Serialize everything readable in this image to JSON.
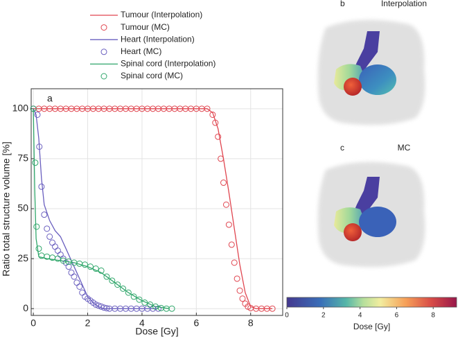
{
  "chart_data": {
    "type": "line",
    "panel_label": "a",
    "xlabel": "Dose [Gy]",
    "ylabel": "Ratio total structure volume [%]",
    "xlim": [
      -0.08,
      9.18
    ],
    "ylim": [
      -3.4,
      110
    ],
    "xticks": [
      0,
      2,
      4,
      6,
      8
    ],
    "yticks": [
      0,
      25,
      50,
      75,
      100
    ],
    "grid": true,
    "series": [
      {
        "name": "Tumour (Interpolation)",
        "mode": "line",
        "color": "#e0454f",
        "x": [
          0,
          6.4,
          6.6,
          6.8,
          7.0,
          7.2,
          7.4,
          7.6,
          7.8,
          8.0,
          8.2,
          8.8
        ],
        "values": [
          100,
          100,
          98,
          90,
          75,
          58,
          40,
          22,
          8,
          1,
          0,
          0
        ]
      },
      {
        "name": "Tumour (MC)",
        "mode": "markers",
        "color": "#e0454f",
        "x": [
          0,
          0.2,
          0.4,
          0.6,
          0.8,
          1.0,
          1.2,
          1.4,
          1.6,
          1.8,
          2.0,
          2.2,
          2.4,
          2.6,
          2.8,
          3.0,
          3.2,
          3.4,
          3.6,
          3.8,
          4.0,
          4.2,
          4.4,
          4.6,
          4.8,
          5.0,
          5.2,
          5.4,
          5.6,
          5.8,
          6.0,
          6.2,
          6.4,
          6.6,
          6.7,
          6.8,
          6.9,
          7.0,
          7.1,
          7.2,
          7.3,
          7.4,
          7.5,
          7.6,
          7.7,
          7.8,
          7.9,
          8.0,
          8.2,
          8.4,
          8.6,
          8.8
        ],
        "values": [
          100,
          100,
          100,
          100,
          100,
          100,
          100,
          100,
          100,
          100,
          100,
          100,
          100,
          100,
          100,
          100,
          100,
          100,
          100,
          100,
          100,
          100,
          100,
          100,
          100,
          100,
          100,
          100,
          100,
          100,
          100,
          100,
          100,
          97,
          93,
          86,
          75,
          63,
          52,
          42,
          32,
          23,
          15,
          9,
          5,
          2.5,
          1,
          0.3,
          0,
          0,
          0,
          0
        ]
      },
      {
        "name": "Heart (Interpolation)",
        "mode": "line",
        "color": "#6a5fbf",
        "x": [
          0,
          0.1,
          0.2,
          0.3,
          0.4,
          0.6,
          0.8,
          1.0,
          1.2,
          1.4,
          1.6,
          1.8,
          2.0,
          2.2,
          2.4,
          2.6,
          4.6
        ],
        "values": [
          100,
          97,
          85,
          65,
          52,
          44,
          39,
          36,
          30,
          24,
          18,
          12,
          6,
          3,
          1,
          0,
          0
        ]
      },
      {
        "name": "Heart (MC)",
        "mode": "markers",
        "color": "#6a5fbf",
        "x": [
          0,
          0.15,
          0.22,
          0.3,
          0.4,
          0.5,
          0.6,
          0.7,
          0.8,
          0.9,
          1.0,
          1.1,
          1.2,
          1.3,
          1.4,
          1.5,
          1.6,
          1.7,
          1.8,
          1.9,
          2.0,
          2.1,
          2.2,
          2.3,
          2.4,
          2.5,
          2.6,
          2.7,
          2.8,
          3.0,
          3.2,
          3.4,
          3.6,
          3.8,
          4.0,
          4.2,
          4.4,
          4.6
        ],
        "values": [
          100,
          97,
          81,
          61,
          47,
          40,
          36,
          33,
          31,
          29,
          27,
          25,
          23,
          21,
          18,
          16,
          13,
          11,
          8,
          6,
          5,
          4,
          3,
          2,
          1.5,
          1,
          0.5,
          0.2,
          0,
          0,
          0,
          0,
          0,
          0,
          0,
          0,
          0,
          0
        ]
      },
      {
        "name": "Spinal cord (Interpolation)",
        "mode": "line",
        "color": "#2fa66a",
        "x": [
          0,
          0.05,
          0.1,
          0.2,
          0.5,
          1.0,
          1.5,
          2.0,
          2.5,
          3.0,
          3.5,
          4.0,
          4.5,
          5.0
        ],
        "values": [
          100,
          60,
          35,
          26,
          25,
          24,
          23,
          21,
          18,
          13,
          8,
          4,
          1,
          0
        ]
      },
      {
        "name": "Spinal cord (MC)",
        "mode": "markers",
        "color": "#2fa66a",
        "x": [
          0,
          0.07,
          0.12,
          0.2,
          0.3,
          0.5,
          0.7,
          0.9,
          1.1,
          1.3,
          1.5,
          1.7,
          1.9,
          2.1,
          2.3,
          2.5,
          2.7,
          2.9,
          3.1,
          3.3,
          3.5,
          3.7,
          3.9,
          4.1,
          4.3,
          4.5,
          4.7,
          4.9,
          5.1
        ],
        "values": [
          100,
          73,
          41,
          30,
          26.5,
          26,
          25.5,
          25,
          24,
          23.5,
          23,
          22.5,
          22,
          21,
          20,
          19,
          16,
          14,
          12,
          10,
          8,
          6,
          4.5,
          3,
          2,
          1,
          0.3,
          0,
          0
        ]
      }
    ],
    "panels": [
      {
        "label": "b",
        "title": "Interpolation"
      },
      {
        "label": "c",
        "title": "MC"
      }
    ],
    "colorbar": {
      "label": "Dose [Gy]",
      "lim": [
        0,
        9.28
      ],
      "ticks": [
        0,
        2,
        4,
        6,
        8
      ]
    }
  }
}
